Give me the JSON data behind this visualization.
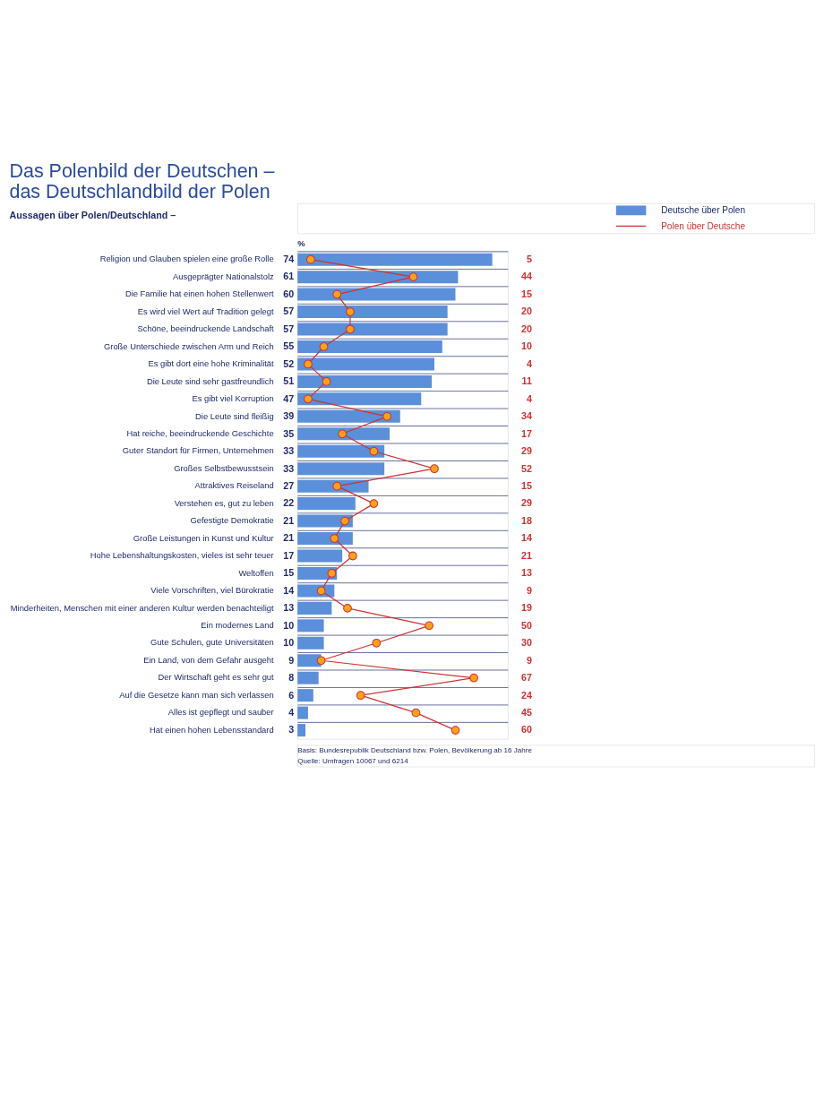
{
  "chart_data": {
    "type": "bar",
    "orientation": "horizontal",
    "title": "Das Polenbild der Deutschen – das Deutschlandbild der Polen",
    "subtitle": "Aussagen über Polen/Deutschland –",
    "categories": [
      "Religion und Glauben spielen eine große Rolle",
      "Ausgeprägter Nationalstolz",
      "Die Familie hat einen hohen Stellenwert",
      "Es wird viel Wert auf Tradition gelegt",
      "Schöne, beeindruckende Landschaft",
      "Große Unterschiede zwischen Arm und Reich",
      "Es gibt dort eine hohe Kriminalität",
      "Die Leute sind sehr gastfreundlich",
      "Es gibt viel Korruption",
      "Die Leute sind fleißig",
      "Hat reiche, beeindruckende Geschichte",
      "Guter Standort für Firmen, Unternehmen",
      "Großes Selbstbewusstsein",
      "Attraktives Reiseland",
      "Verstehen es, gut zu leben",
      "Gefestigte Demokratie",
      "Große Leistungen in Kunst und Kultur",
      "Hohe Lebenshaltungskosten, vieles ist sehr teuer",
      "Weltoffen",
      "Viele Vorschriften, viel Bürokratie",
      "Minderheiten, Menschen mit einer anderen Kultur werden benachteiligt",
      "Ein modernes Land",
      "Gute Schulen, gute Universitäten",
      "Ein Land, von dem Gefahr ausgeht",
      "Der Wirtschaft geht es sehr gut",
      "Auf die Gesetze kann man sich verlassen",
      "Alles ist gepflegt und sauber",
      "Hat einen hohen Lebensstandard"
    ],
    "series": [
      {
        "name": "Deutsche über Polen",
        "color": "#5b8fd9",
        "values": [
          74,
          61,
          60,
          57,
          57,
          55,
          52,
          51,
          47,
          39,
          35,
          33,
          33,
          27,
          22,
          21,
          21,
          17,
          15,
          14,
          13,
          10,
          10,
          9,
          8,
          6,
          4,
          3
        ]
      },
      {
        "name": "Polen über Deutsche",
        "type": "line",
        "color": "#cc3333",
        "values": [
          5,
          44,
          15,
          20,
          20,
          10,
          4,
          11,
          4,
          34,
          17,
          29,
          52,
          15,
          29,
          18,
          14,
          21,
          13,
          9,
          19,
          50,
          30,
          9,
          67,
          24,
          45,
          60
        ]
      }
    ],
    "data_labels": true,
    "marker": "circle",
    "grid": "y",
    "legend": "top right",
    "annotations": [
      "%",
      "Basis: Bundesrepublik Deutschland bzw. Polen, Bevölkerung ab 16 Jahre",
      "Quelle: Umfragen 10067 und 6214"
    ]
  }
}
